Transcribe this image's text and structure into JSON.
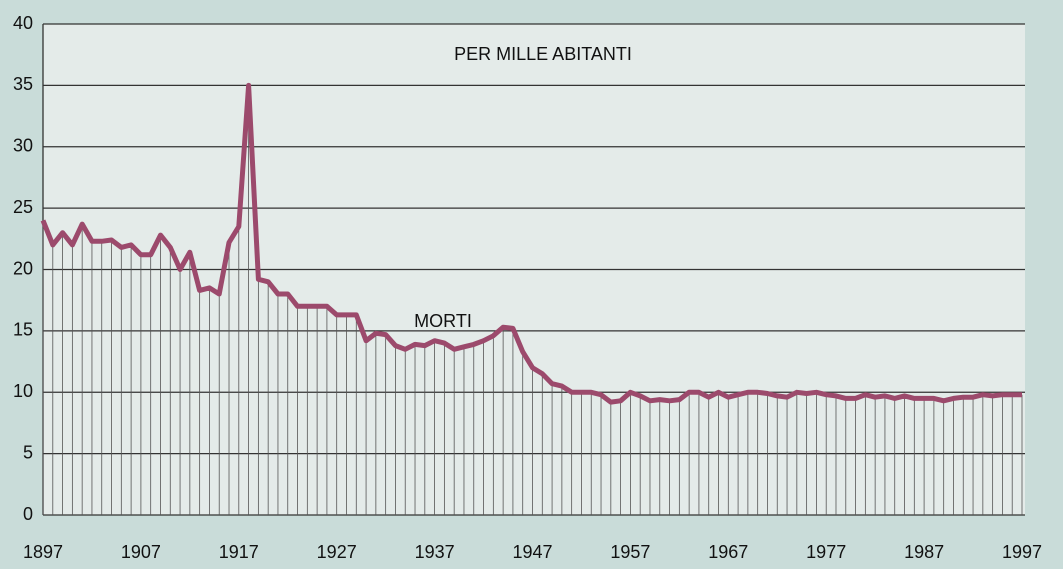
{
  "chart_data": {
    "type": "line",
    "annotations": [
      "PER MILLE ABITANTI",
      "MORTI"
    ],
    "x": [
      1897,
      1898,
      1899,
      1900,
      1901,
      1902,
      1903,
      1904,
      1905,
      1906,
      1907,
      1908,
      1909,
      1910,
      1911,
      1912,
      1913,
      1914,
      1915,
      1916,
      1917,
      1918,
      1919,
      1920,
      1921,
      1922,
      1923,
      1924,
      1925,
      1926,
      1927,
      1928,
      1929,
      1930,
      1931,
      1932,
      1933,
      1934,
      1935,
      1936,
      1937,
      1938,
      1939,
      1940,
      1941,
      1942,
      1943,
      1944,
      1945,
      1946,
      1947,
      1948,
      1949,
      1950,
      1951,
      1952,
      1953,
      1954,
      1955,
      1956,
      1957,
      1958,
      1959,
      1960,
      1961,
      1962,
      1963,
      1964,
      1965,
      1966,
      1967,
      1968,
      1969,
      1970,
      1971,
      1972,
      1973,
      1974,
      1975,
      1976,
      1977,
      1978,
      1979,
      1980,
      1981,
      1982,
      1983,
      1984,
      1985,
      1986,
      1987,
      1988,
      1989,
      1990,
      1991,
      1992,
      1993,
      1994,
      1995,
      1996,
      1997
    ],
    "series": [
      {
        "name": "MORTI",
        "color": "#9c4a6c",
        "values": [
          24,
          22,
          23,
          22,
          23.7,
          22.3,
          22.3,
          22.4,
          21.8,
          22,
          21.2,
          21.2,
          22.8,
          21.8,
          20,
          21.4,
          18.3,
          18.5,
          18,
          22.2,
          23.5,
          35,
          19.2,
          19,
          18,
          18,
          17,
          17,
          17,
          17,
          16.3,
          16.3,
          16.3,
          14.2,
          14.8,
          14.7,
          13.8,
          13.5,
          13.9,
          13.8,
          14.2,
          14,
          13.5,
          13.7,
          13.9,
          14.2,
          14.6,
          15.3,
          15.2,
          13.3,
          12,
          11.5,
          10.7,
          10.5,
          10,
          10,
          10,
          9.8,
          9.2,
          9.3,
          10,
          9.7,
          9.3,
          9.4,
          9.3,
          9.4,
          10,
          10,
          9.6,
          10,
          9.6,
          9.8,
          10,
          10,
          9.9,
          9.7,
          9.6,
          10,
          9.9,
          10,
          9.8,
          9.7,
          9.5,
          9.5,
          9.8,
          9.6,
          9.7,
          9.5,
          9.7,
          9.5,
          9.5,
          9.5,
          9.3,
          9.5,
          9.6,
          9.6,
          9.8,
          9.7,
          9.8,
          9.8,
          9.8
        ]
      }
    ],
    "xlim": [
      1897,
      1997
    ],
    "xticks": [
      1897,
      1907,
      1917,
      1927,
      1937,
      1947,
      1957,
      1967,
      1977,
      1987,
      1997
    ],
    "ylim": [
      0,
      40
    ],
    "yticks": [
      0,
      5,
      10,
      15,
      20,
      25,
      30,
      35,
      40
    ],
    "grid": true
  }
}
